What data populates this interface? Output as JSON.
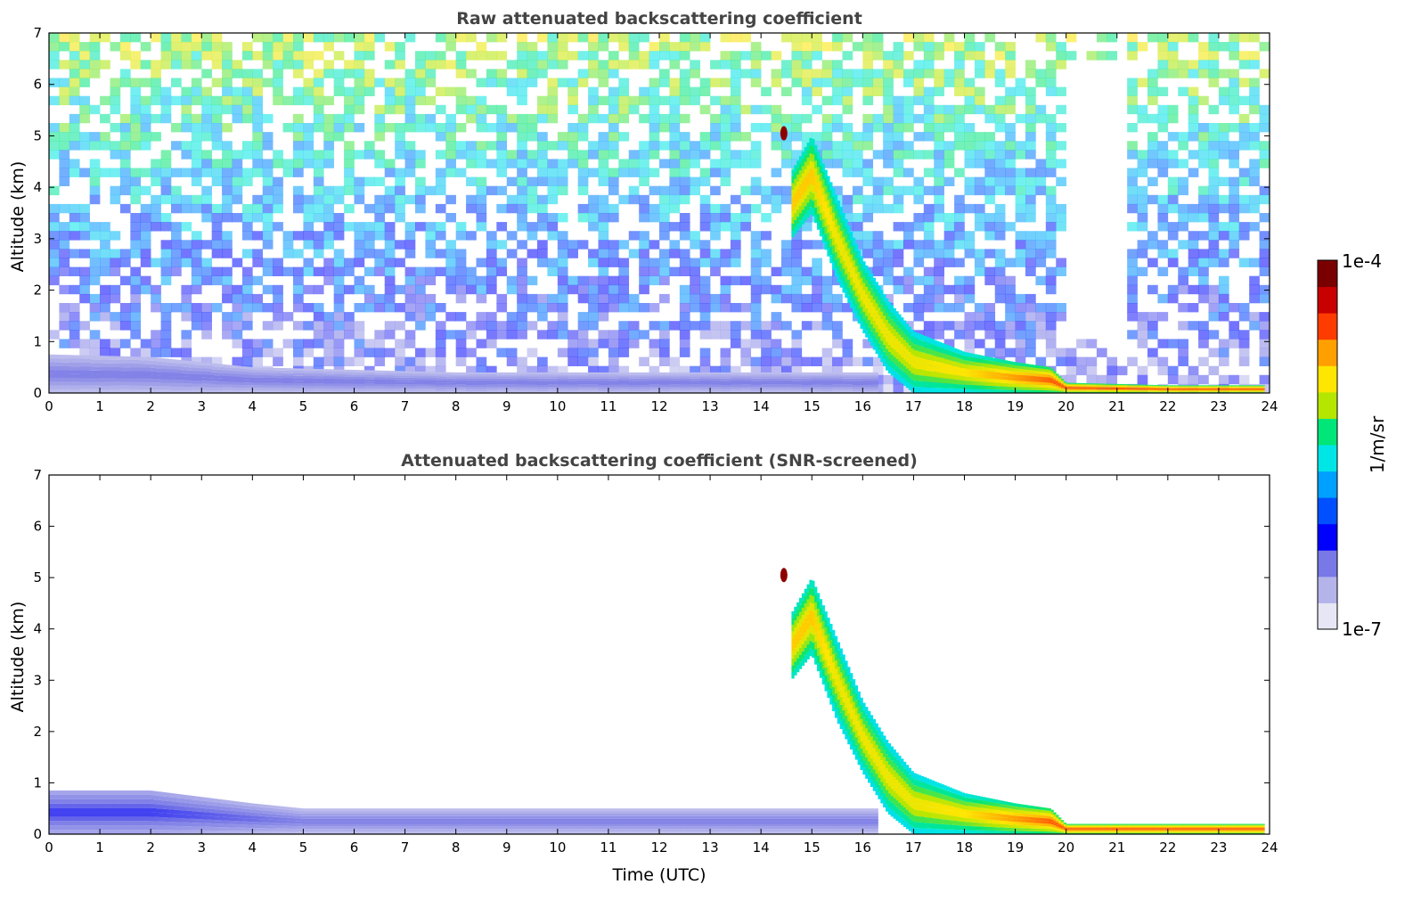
{
  "chart_data": [
    {
      "type": "heatmap",
      "title": "Raw attenuated backscattering coefficient",
      "xlabel": "",
      "ylabel": "Altitude (km)",
      "xlim": [
        0,
        24
      ],
      "ylim": [
        0,
        7
      ],
      "x_ticks": [
        "0",
        "1",
        "2",
        "3",
        "4",
        "5",
        "6",
        "7",
        "8",
        "9",
        "10",
        "11",
        "12",
        "13",
        "14",
        "15",
        "16",
        "17",
        "18",
        "19",
        "20",
        "21",
        "22",
        "23",
        "24"
      ],
      "y_ticks": [
        "0",
        "1",
        "2",
        "3",
        "4",
        "5",
        "6",
        "7"
      ],
      "noise": true,
      "features": [
        {
          "t": 0.0,
          "base": 0.0,
          "top": 0.75,
          "level": 0.1
        },
        {
          "t": 2.0,
          "base": 0.0,
          "top": 0.7,
          "level": 0.1
        },
        {
          "t": 4.0,
          "base": 0.0,
          "top": 0.5,
          "level": 0.1
        },
        {
          "t": 8.0,
          "base": 0.0,
          "top": 0.4,
          "level": 0.1
        },
        {
          "t": 14.0,
          "base": 0.0,
          "top": 0.4,
          "level": 0.1
        },
        {
          "t": 16.3,
          "base": 0.0,
          "top": 0.4,
          "level": 0.1
        },
        {
          "t": 14.6,
          "base": 3.0,
          "top": 4.3,
          "level": 0.75
        },
        {
          "t": 15.0,
          "base": 3.5,
          "top": 5.0,
          "level": 0.75
        },
        {
          "t": 15.5,
          "base": 2.2,
          "top": 3.8,
          "level": 0.7
        },
        {
          "t": 16.0,
          "base": 1.2,
          "top": 2.6,
          "level": 0.7
        },
        {
          "t": 16.5,
          "base": 0.4,
          "top": 1.8,
          "level": 0.7
        },
        {
          "t": 17.0,
          "base": 0.0,
          "top": 1.2,
          "level": 0.7
        },
        {
          "t": 18.0,
          "base": 0.0,
          "top": 0.8,
          "level": 0.72
        },
        {
          "t": 19.0,
          "base": 0.0,
          "top": 0.6,
          "level": 0.8
        },
        {
          "t": 19.7,
          "base": 0.0,
          "top": 0.5,
          "level": 0.85
        },
        {
          "t": 20.0,
          "base": 0.0,
          "top": 0.2,
          "level": 0.85
        },
        {
          "t": 22.0,
          "base": 0.0,
          "top": 0.15,
          "level": 0.85
        },
        {
          "t": 23.9,
          "base": 0.0,
          "top": 0.15,
          "level": 0.85
        }
      ],
      "point_features": [
        {
          "t": 14.45,
          "alt": 5.05,
          "level": 0.98
        }
      ]
    },
    {
      "type": "heatmap",
      "title": "Attenuated backscattering coefficient (SNR-screened)",
      "xlabel": "Time (UTC)",
      "ylabel": "Altitude (km)",
      "xlim": [
        0,
        24
      ],
      "ylim": [
        0,
        7
      ],
      "x_ticks": [
        "0",
        "1",
        "2",
        "3",
        "4",
        "5",
        "6",
        "7",
        "8",
        "9",
        "10",
        "11",
        "12",
        "13",
        "14",
        "15",
        "16",
        "17",
        "18",
        "19",
        "20",
        "21",
        "22",
        "23",
        "24"
      ],
      "y_ticks": [
        "0",
        "1",
        "2",
        "3",
        "4",
        "5",
        "6",
        "7"
      ],
      "noise": false,
      "features": [
        {
          "t": 0.0,
          "base": 0.0,
          "top": 0.85,
          "level": 0.15
        },
        {
          "t": 2.0,
          "base": 0.0,
          "top": 0.85,
          "level": 0.15
        },
        {
          "t": 4.0,
          "base": 0.0,
          "top": 0.6,
          "level": 0.12
        },
        {
          "t": 5.0,
          "base": 0.0,
          "top": 0.5,
          "level": 0.1
        },
        {
          "t": 14.0,
          "base": 0.0,
          "top": 0.5,
          "level": 0.1
        },
        {
          "t": 16.3,
          "base": 0.0,
          "top": 0.5,
          "level": 0.1
        },
        {
          "t": 14.6,
          "base": 3.0,
          "top": 4.3,
          "level": 0.75
        },
        {
          "t": 15.0,
          "base": 3.5,
          "top": 5.0,
          "level": 0.75
        },
        {
          "t": 15.5,
          "base": 2.2,
          "top": 3.8,
          "level": 0.7
        },
        {
          "t": 16.0,
          "base": 1.2,
          "top": 2.6,
          "level": 0.7
        },
        {
          "t": 16.5,
          "base": 0.4,
          "top": 1.8,
          "level": 0.7
        },
        {
          "t": 17.0,
          "base": 0.0,
          "top": 1.2,
          "level": 0.7
        },
        {
          "t": 18.0,
          "base": 0.0,
          "top": 0.8,
          "level": 0.72
        },
        {
          "t": 19.0,
          "base": 0.0,
          "top": 0.6,
          "level": 0.8
        },
        {
          "t": 19.7,
          "base": 0.0,
          "top": 0.5,
          "level": 0.85
        },
        {
          "t": 20.0,
          "base": 0.0,
          "top": 0.2,
          "level": 0.85
        },
        {
          "t": 22.0,
          "base": 0.0,
          "top": 0.2,
          "level": 0.85
        },
        {
          "t": 23.9,
          "base": 0.0,
          "top": 0.2,
          "level": 0.85
        }
      ],
      "point_features": [
        {
          "t": 14.45,
          "alt": 5.05,
          "level": 0.98
        }
      ]
    }
  ],
  "colorbar": {
    "max_label": "1e-4",
    "min_label": "1e-7",
    "label": "1/m/sr",
    "colors": [
      "#e6e6f5",
      "#b4b4eb",
      "#7878e6",
      "#0000ff",
      "#0050ff",
      "#00a0ff",
      "#00e6e6",
      "#00e678",
      "#b4e600",
      "#ffe600",
      "#ffa000",
      "#ff3c00",
      "#c80000",
      "#7a0000"
    ]
  }
}
